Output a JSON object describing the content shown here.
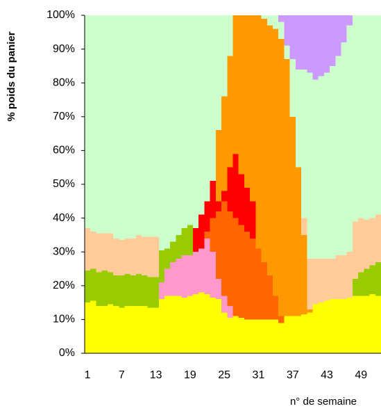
{
  "chart_data": {
    "type": "stacked-bar",
    "x_label": "n° de semaine",
    "y_label": "%  poids du panier",
    "categories": [
      1,
      null,
      null,
      null,
      null,
      null,
      7,
      null,
      null,
      null,
      null,
      null,
      13,
      null,
      null,
      null,
      null,
      null,
      19,
      null,
      null,
      null,
      null,
      null,
      25,
      null,
      null,
      null,
      null,
      null,
      31,
      null,
      null,
      null,
      null,
      null,
      37,
      null,
      null,
      null,
      null,
      null,
      43,
      null,
      null,
      null,
      null,
      null,
      49,
      null,
      null,
      null
    ],
    "ylim": [
      0,
      100
    ],
    "yticks": [
      {
        "value": 0,
        "label": "0%"
      },
      {
        "value": 10,
        "label": "10%"
      },
      {
        "value": 20,
        "label": "20%"
      },
      {
        "value": 30,
        "label": "30%"
      },
      {
        "value": 40,
        "label": "40%"
      },
      {
        "value": 50,
        "label": "50%"
      },
      {
        "value": 60,
        "label": "60%"
      },
      {
        "value": 70,
        "label": "70%"
      },
      {
        "value": 80,
        "label": "80%"
      },
      {
        "value": 90,
        "label": "90%"
      },
      {
        "value": 100,
        "label": "100%"
      }
    ],
    "series": [
      {
        "color": "#ffff00",
        "values": [
          15,
          15.5,
          14,
          14,
          14.5,
          14,
          13.5,
          14,
          14,
          14,
          14,
          13.5,
          13.5,
          16,
          17,
          17,
          17,
          16.5,
          17,
          17.5,
          18,
          17.5,
          16.5,
          16,
          12,
          10.5,
          11,
          10.5,
          10,
          10,
          10,
          10,
          10,
          10,
          9,
          11,
          11,
          11,
          11.5,
          12,
          14.5,
          15,
          15.5,
          16,
          16,
          16,
          16.5,
          17,
          17,
          17,
          17.5,
          17
        ]
      },
      {
        "color": "#ff99cc",
        "values": [
          0,
          0,
          0,
          0,
          0,
          0,
          0,
          0,
          0,
          0,
          0,
          0,
          0,
          5,
          8,
          10,
          11,
          12.5,
          12,
          12.5,
          13,
          16.5,
          13.5,
          6,
          5,
          3.5,
          0,
          0,
          0,
          0,
          0,
          0,
          0,
          0,
          0,
          0,
          0,
          0,
          0,
          0,
          0,
          0,
          0,
          0,
          0,
          0,
          0,
          0,
          0,
          0,
          0,
          0
        ]
      },
      {
        "color": "#99cc00",
        "values": [
          9.5,
          9.5,
          10,
          10.5,
          9.5,
          9,
          9.5,
          9.5,
          9,
          9.5,
          9,
          9,
          9,
          9.5,
          6,
          6,
          7,
          8,
          9,
          0,
          0,
          0,
          0,
          0,
          0,
          0,
          0,
          0,
          0,
          0,
          0,
          0,
          0,
          0,
          0,
          0,
          0,
          0,
          0,
          0,
          0,
          0,
          0,
          0,
          0,
          0,
          0,
          5,
          7,
          8,
          8.5,
          10
        ]
      },
      {
        "color": "#ff6600",
        "values": [
          0,
          0,
          0,
          0,
          0,
          0,
          0,
          0,
          0,
          0,
          0,
          0,
          0,
          0,
          0,
          0,
          0,
          0,
          0,
          0,
          0,
          2,
          10,
          20,
          28,
          28,
          29,
          27.5,
          26,
          24,
          21,
          17,
          13,
          7,
          2,
          0,
          0,
          0,
          0,
          0,
          0,
          0,
          0,
          0,
          0,
          0,
          0,
          0,
          0,
          0,
          0,
          0
        ]
      },
      {
        "color": "#ff0000",
        "values": [
          0,
          0,
          0,
          0,
          0,
          0,
          0,
          0,
          0,
          0,
          0,
          0,
          0,
          0,
          0,
          0,
          0,
          0,
          0,
          7,
          10,
          9,
          11,
          3,
          3,
          13,
          19,
          15,
          13,
          11,
          0,
          0,
          0,
          0,
          0,
          0,
          0,
          0,
          0,
          0,
          0,
          0,
          0,
          0,
          0,
          0,
          0,
          0,
          0,
          0,
          0,
          0
        ]
      },
      {
        "color": "#ff9900",
        "values": [
          0,
          0,
          0,
          0,
          0,
          0,
          0,
          0,
          0,
          0,
          0,
          0,
          0,
          0,
          0,
          0,
          0,
          0,
          0,
          0,
          0,
          0,
          0,
          21,
          28,
          33,
          41,
          47,
          51,
          55,
          69,
          72,
          74,
          79,
          82,
          76,
          59,
          44,
          23.5,
          1,
          0,
          0,
          0,
          0,
          0,
          0,
          0,
          0,
          0,
          0,
          0,
          0
        ]
      },
      {
        "color": "#ffcc99",
        "values": [
          12.5,
          11,
          11.5,
          11,
          11.5,
          11,
          10.5,
          10.5,
          11,
          11.5,
          11.5,
          12,
          12,
          0,
          0,
          0,
          0,
          0,
          0,
          0,
          0,
          0,
          0,
          0,
          0,
          0,
          0,
          0,
          0,
          0,
          0,
          0,
          0,
          0,
          0,
          0,
          0,
          0,
          5,
          15,
          13.5,
          13,
          12.5,
          12,
          13,
          13,
          13.5,
          17,
          16,
          14.5,
          14,
          14
        ]
      },
      {
        "color": "#ccffcc",
        "values": [
          63,
          64,
          64.5,
          64.5,
          64.5,
          66,
          66.5,
          66,
          66,
          65,
          65.5,
          65.5,
          65.5,
          69.5,
          69,
          67,
          65,
          63,
          62,
          63,
          59,
          55,
          49,
          34,
          24,
          12,
          0,
          0,
          0,
          0,
          0,
          1,
          3,
          4,
          5,
          4,
          17,
          29,
          44,
          55,
          53,
          54,
          55,
          57,
          59,
          63,
          67,
          61,
          60,
          60.5,
          60,
          59
        ]
      },
      {
        "color": "#cc99ff",
        "values": [
          0,
          0,
          0,
          0,
          0,
          0,
          0,
          0,
          0,
          0,
          0,
          0,
          0,
          0,
          0,
          0,
          0,
          0,
          0,
          0,
          0,
          0,
          0,
          0,
          0,
          0,
          0,
          0,
          0,
          0,
          0,
          0,
          0,
          0,
          2,
          9,
          13,
          16,
          16,
          17,
          19,
          18,
          17,
          15,
          12,
          8,
          3,
          0,
          0,
          0,
          0,
          0
        ]
      }
    ]
  }
}
